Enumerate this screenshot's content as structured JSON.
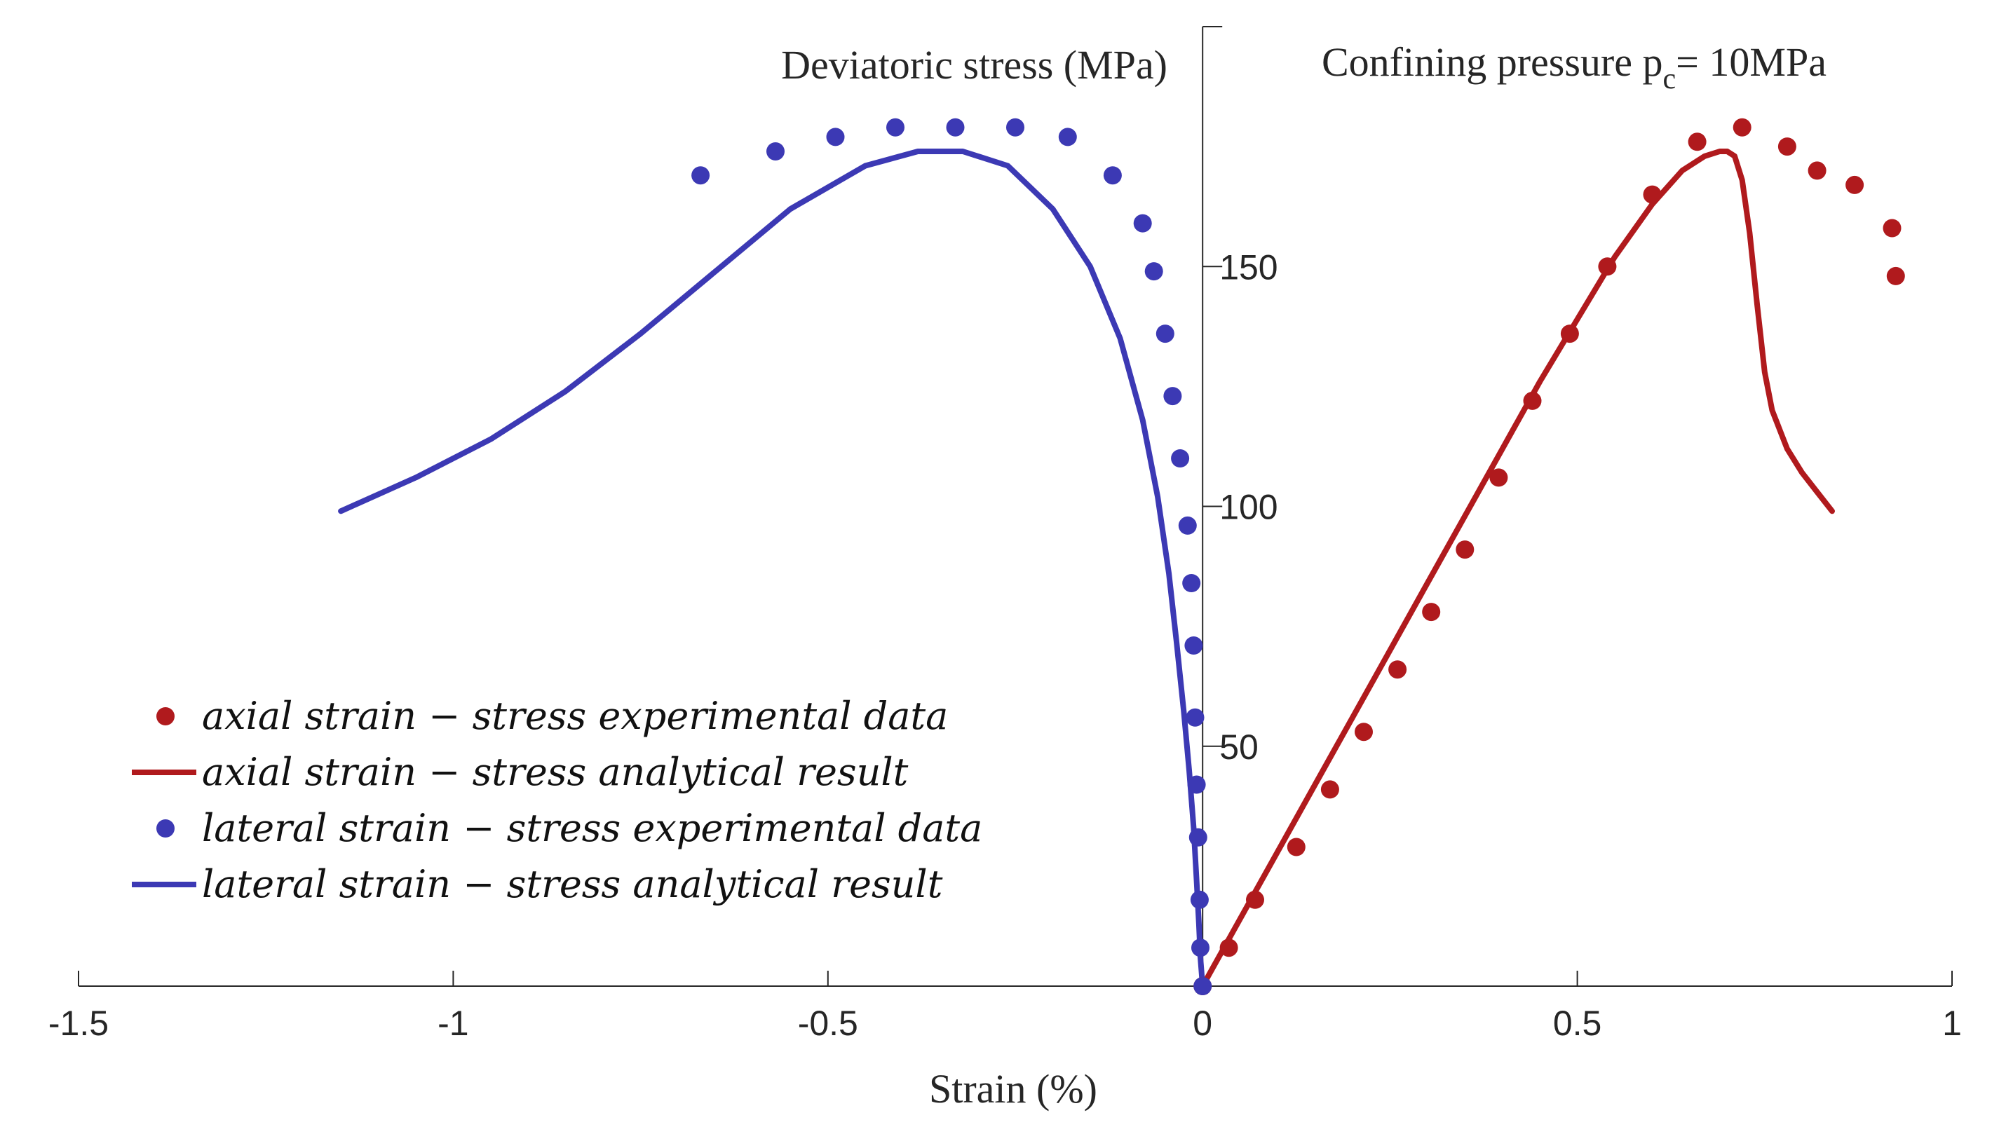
{
  "chart_data": {
    "type": "scatter",
    "title": "",
    "xlabel": "Strain (%)",
    "ylabel": "Deviatoric stress (MPa)",
    "annotation": {
      "text": "Confining pressure p",
      "subscript": "c",
      "suffix": "= 10MPa"
    },
    "xlim": [
      -1.5,
      1
    ],
    "ylim": [
      0,
      200
    ],
    "xticks": [
      -1.5,
      -1,
      -0.5,
      0,
      0.5,
      1
    ],
    "xtick_labels": [
      "-1.5",
      "-1",
      "-0.5",
      "0",
      "0.5",
      "1"
    ],
    "yticks": [
      50,
      100,
      150
    ],
    "ytick_labels": [
      "50",
      "100",
      "150"
    ],
    "legend": {
      "position": "bottom-left",
      "entries": [
        {
          "label": "axial strain − stress experimental data",
          "marker": "dot",
          "color": "#b01a1d"
        },
        {
          "label": "axial strain − stress analytical result",
          "marker": "line",
          "color": "#b01a1d"
        },
        {
          "label": "lateral strain − stress experimental data",
          "marker": "dot",
          "color": "#3c39b4"
        },
        {
          "label": "lateral strain − stress analytical result",
          "marker": "line",
          "color": "#3c39b4"
        }
      ]
    },
    "series": [
      {
        "name": "axial strain − stress experimental data",
        "kind": "scatter",
        "color": "#b01a1d",
        "x": [
          0,
          0.035,
          0.07,
          0.125,
          0.17,
          0.215,
          0.26,
          0.305,
          0.35,
          0.395,
          0.44,
          0.49,
          0.54,
          0.6,
          0.66,
          0.72,
          0.78,
          0.82,
          0.87,
          0.92,
          0.925
        ],
        "y": [
          0,
          8,
          18,
          29,
          41,
          53,
          66,
          78,
          91,
          106,
          122,
          136,
          150,
          165,
          176,
          179,
          175,
          170,
          167,
          158,
          148
        ]
      },
      {
        "name": "axial strain − stress analytical result",
        "kind": "line",
        "color": "#b01a1d",
        "x": [
          0,
          0.05,
          0.1,
          0.15,
          0.2,
          0.25,
          0.3,
          0.35,
          0.4,
          0.45,
          0.5,
          0.55,
          0.6,
          0.64,
          0.67,
          0.69,
          0.7,
          0.71,
          0.72,
          0.73,
          0.74,
          0.75,
          0.76,
          0.78,
          0.8,
          0.82,
          0.84
        ],
        "y": [
          0,
          14,
          28,
          42,
          56,
          70,
          84,
          98,
          112,
          126,
          139,
          152,
          163,
          170,
          173,
          174,
          174,
          173,
          168,
          157,
          142,
          128,
          120,
          112,
          107,
          103,
          99
        ]
      },
      {
        "name": "lateral strain − stress experimental data",
        "kind": "scatter",
        "color": "#3c39b4",
        "x": [
          -0.67,
          -0.57,
          -0.49,
          -0.41,
          -0.33,
          -0.25,
          -0.18,
          -0.12,
          -0.08,
          -0.065,
          -0.05,
          -0.04,
          -0.03,
          -0.02,
          -0.015,
          -0.012,
          -0.01,
          -0.008,
          -0.006,
          -0.004,
          -0.003,
          0
        ],
        "y": [
          169,
          174,
          177,
          179,
          179,
          179,
          177,
          169,
          159,
          149,
          136,
          123,
          110,
          96,
          84,
          71,
          56,
          42,
          31,
          18,
          8,
          0
        ]
      },
      {
        "name": "lateral strain − stress analytical result",
        "kind": "line",
        "color": "#3c39b4",
        "x": [
          -1.15,
          -1.05,
          -0.95,
          -0.85,
          -0.75,
          -0.65,
          -0.55,
          -0.45,
          -0.38,
          -0.32,
          -0.26,
          -0.2,
          -0.15,
          -0.11,
          -0.08,
          -0.06,
          -0.045,
          -0.035,
          -0.025,
          -0.018,
          -0.012,
          -0.008,
          -0.005,
          -0.003,
          0
        ],
        "y": [
          99,
          106,
          114,
          124,
          136,
          149,
          162,
          171,
          174,
          174,
          171,
          162,
          150,
          135,
          118,
          102,
          86,
          72,
          57,
          45,
          33,
          22,
          13,
          6,
          0
        ]
      }
    ]
  }
}
